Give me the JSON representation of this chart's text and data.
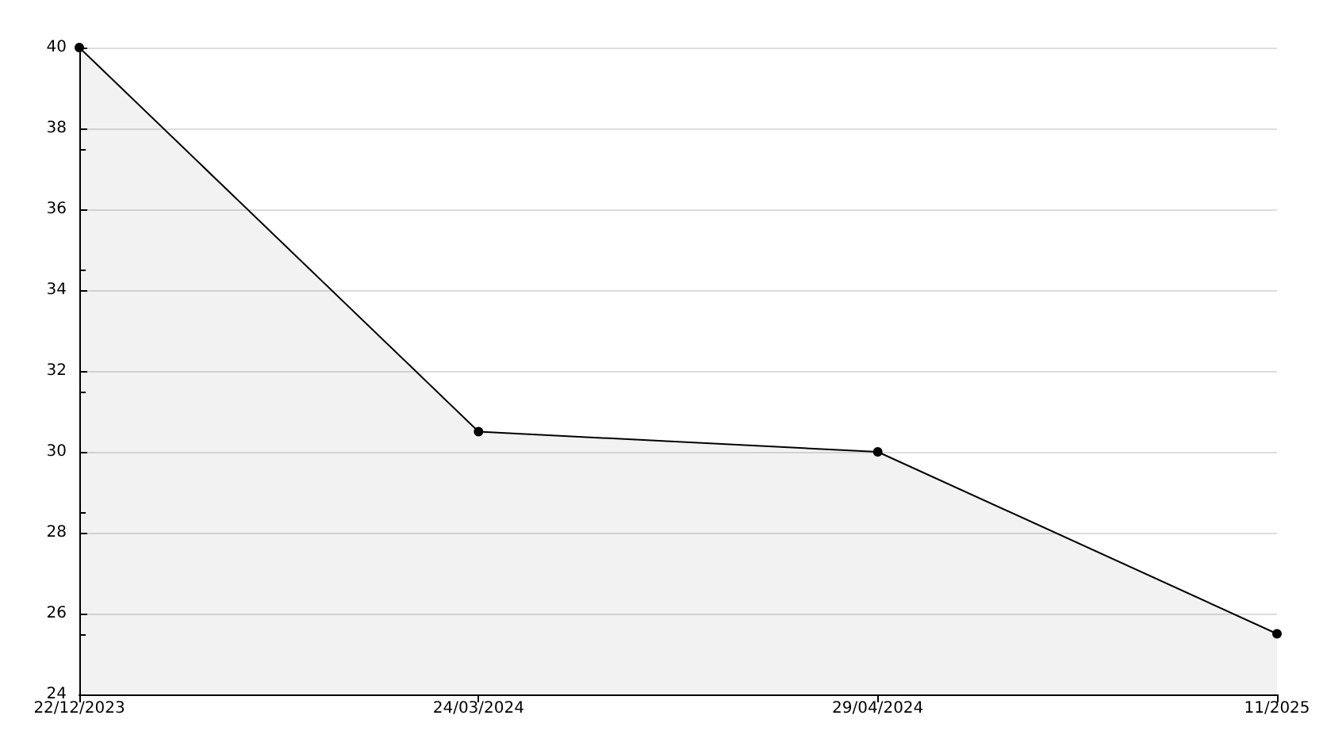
{
  "chart_data": {
    "type": "area",
    "categories": [
      "22/12/2023",
      "24/03/2024",
      "29/04/2024",
      "11/2025"
    ],
    "series": [
      {
        "color": "#000000",
        "values": [
          40,
          30.5,
          30,
          25.5
        ]
      }
    ],
    "ylim": [
      24,
      40
    ],
    "yticks": [
      24,
      26,
      28,
      30,
      32,
      34,
      36,
      38,
      40
    ],
    "grid": "y",
    "marker": "circle",
    "line_style": "solid"
  }
}
